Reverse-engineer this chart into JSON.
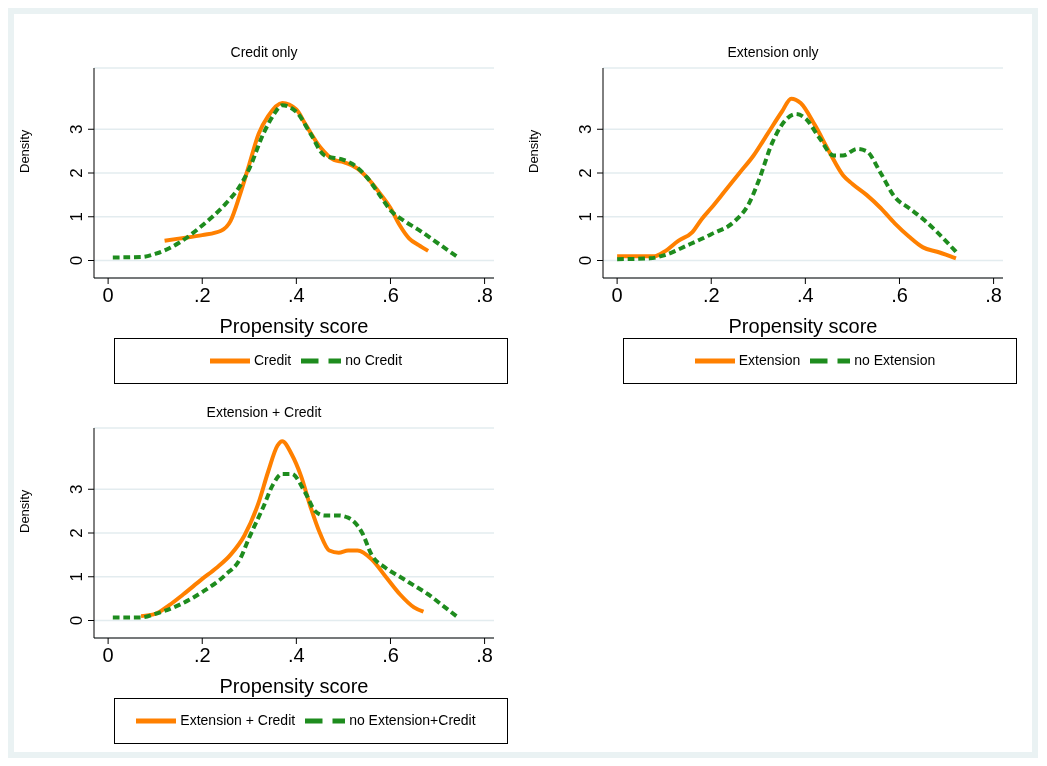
{
  "chart_data": [
    {
      "type": "line",
      "title": "Credit only",
      "xlabel": "Propensity score",
      "ylabel": "Density",
      "xlim": [
        -0.03,
        0.82
      ],
      "ylim": [
        -0.4,
        4.4
      ],
      "xticks": [
        {
          "value": 0,
          "label": "0"
        },
        {
          "value": 0.2,
          "label": ".2"
        },
        {
          "value": 0.4,
          "label": ".4"
        },
        {
          "value": 0.6,
          "label": ".6"
        },
        {
          "value": 0.8,
          "label": ".8"
        }
      ],
      "yticks": [
        0,
        1,
        2,
        3
      ],
      "grid": "y",
      "legend": "bottom",
      "marker": "none",
      "series": [
        {
          "name": "Credit",
          "color": "#ff8000",
          "line_style": "solid",
          "x": [
            0.12,
            0.15,
            0.2,
            0.24,
            0.26,
            0.28,
            0.3,
            0.32,
            0.34,
            0.37,
            0.4,
            0.42,
            0.45,
            0.48,
            0.5,
            0.53,
            0.55,
            0.58,
            0.6,
            0.62,
            0.64,
            0.66,
            0.68
          ],
          "values": [
            0.45,
            0.5,
            0.58,
            0.68,
            0.9,
            1.5,
            2.2,
            2.9,
            3.3,
            3.6,
            3.45,
            3.1,
            2.6,
            2.3,
            2.25,
            2.1,
            1.9,
            1.5,
            1.2,
            0.8,
            0.5,
            0.35,
            0.22
          ]
        },
        {
          "name": "no Credit",
          "color": "#1e8c1e",
          "line_style": "dashed",
          "x": [
            0.01,
            0.07,
            0.1,
            0.15,
            0.2,
            0.25,
            0.28,
            0.3,
            0.33,
            0.35,
            0.37,
            0.4,
            0.43,
            0.46,
            0.5,
            0.52,
            0.55,
            0.58,
            0.6,
            0.63,
            0.66,
            0.7,
            0.74
          ],
          "values": [
            0.07,
            0.08,
            0.15,
            0.4,
            0.8,
            1.3,
            1.7,
            2.1,
            2.9,
            3.3,
            3.55,
            3.4,
            2.9,
            2.4,
            2.3,
            2.2,
            1.9,
            1.45,
            1.15,
            0.9,
            0.7,
            0.4,
            0.1
          ]
        }
      ]
    },
    {
      "type": "line",
      "title": "Extension only",
      "xlabel": "Propensity score",
      "ylabel": "Density",
      "xlim": [
        -0.03,
        0.82
      ],
      "ylim": [
        -0.4,
        4.4
      ],
      "xticks": [
        {
          "value": 0,
          "label": "0"
        },
        {
          "value": 0.2,
          "label": ".2"
        },
        {
          "value": 0.4,
          "label": ".4"
        },
        {
          "value": 0.6,
          "label": ".6"
        },
        {
          "value": 0.8,
          "label": ".8"
        }
      ],
      "yticks": [
        0,
        1,
        2,
        3
      ],
      "grid": "y",
      "legend": "bottom",
      "marker": "none",
      "series": [
        {
          "name": "Extension",
          "color": "#ff8000",
          "line_style": "solid",
          "x": [
            0,
            0.05,
            0.08,
            0.1,
            0.13,
            0.16,
            0.18,
            0.2,
            0.23,
            0.26,
            0.29,
            0.32,
            0.35,
            0.37,
            0.39,
            0.42,
            0.45,
            0.48,
            0.5,
            0.53,
            0.56,
            0.59,
            0.62,
            0.65,
            0.68,
            0.72
          ],
          "values": [
            0.1,
            0.1,
            0.1,
            0.2,
            0.45,
            0.65,
            0.95,
            1.2,
            1.6,
            2,
            2.4,
            2.9,
            3.4,
            3.7,
            3.6,
            3.1,
            2.5,
            1.95,
            1.75,
            1.5,
            1.2,
            0.85,
            0.55,
            0.3,
            0.2,
            0.05
          ]
        },
        {
          "name": "no Extension",
          "color": "#1e8c1e",
          "line_style": "dashed",
          "x": [
            0,
            0.07,
            0.1,
            0.15,
            0.2,
            0.25,
            0.28,
            0.3,
            0.33,
            0.35,
            0.38,
            0.4,
            0.43,
            0.46,
            0.48,
            0.51,
            0.53,
            0.56,
            0.59,
            0.62,
            0.65,
            0.68,
            0.72
          ],
          "values": [
            0.03,
            0.05,
            0.12,
            0.35,
            0.6,
            0.9,
            1.3,
            1.8,
            2.7,
            3.1,
            3.35,
            3.25,
            2.8,
            2.4,
            2.4,
            2.55,
            2.5,
            2,
            1.45,
            1.2,
            0.95,
            0.65,
            0.2
          ]
        }
      ]
    },
    {
      "type": "line",
      "title": "Extension + Credit",
      "xlabel": "Propensity score",
      "ylabel": "Density",
      "xlim": [
        -0.03,
        0.82
      ],
      "ylim": [
        -0.4,
        4.4
      ],
      "xticks": [
        {
          "value": 0,
          "label": "0"
        },
        {
          "value": 0.2,
          "label": ".2"
        },
        {
          "value": 0.4,
          "label": ".4"
        },
        {
          "value": 0.6,
          "label": ".6"
        },
        {
          "value": 0.8,
          "label": ".8"
        }
      ],
      "yticks": [
        0,
        1,
        2,
        3
      ],
      "grid": "y",
      "legend": "bottom",
      "marker": "none",
      "series": [
        {
          "name": "Extension + Credit",
          "color": "#ff8000",
          "line_style": "solid",
          "x": [
            0.07,
            0.1,
            0.13,
            0.16,
            0.2,
            0.23,
            0.26,
            0.29,
            0.32,
            0.34,
            0.36,
            0.37,
            0.39,
            0.41,
            0.43,
            0.45,
            0.47,
            0.49,
            0.51,
            0.53,
            0.56,
            0.59,
            0.62,
            0.65,
            0.67
          ],
          "values": [
            0.1,
            0.15,
            0.35,
            0.6,
            0.95,
            1.2,
            1.5,
            1.95,
            2.7,
            3.4,
            4,
            4.1,
            3.8,
            3.3,
            2.6,
            2,
            1.6,
            1.55,
            1.6,
            1.6,
            1.4,
            1,
            0.6,
            0.3,
            0.2
          ]
        },
        {
          "name": "no Extension+Credit",
          "color": "#1e8c1e",
          "line_style": "dashed",
          "x": [
            0.01,
            0.07,
            0.1,
            0.15,
            0.2,
            0.25,
            0.28,
            0.3,
            0.33,
            0.35,
            0.37,
            0.39,
            0.42,
            0.44,
            0.46,
            0.49,
            0.51,
            0.54,
            0.56,
            0.59,
            0.62,
            0.65,
            0.68,
            0.71,
            0.74
          ],
          "values": [
            0.07,
            0.07,
            0.15,
            0.35,
            0.65,
            1.05,
            1.4,
            1.9,
            2.6,
            3.1,
            3.35,
            3.35,
            2.9,
            2.5,
            2.4,
            2.4,
            2.35,
            2,
            1.5,
            1.2,
            1,
            0.8,
            0.6,
            0.35,
            0.1
          ]
        }
      ]
    }
  ]
}
